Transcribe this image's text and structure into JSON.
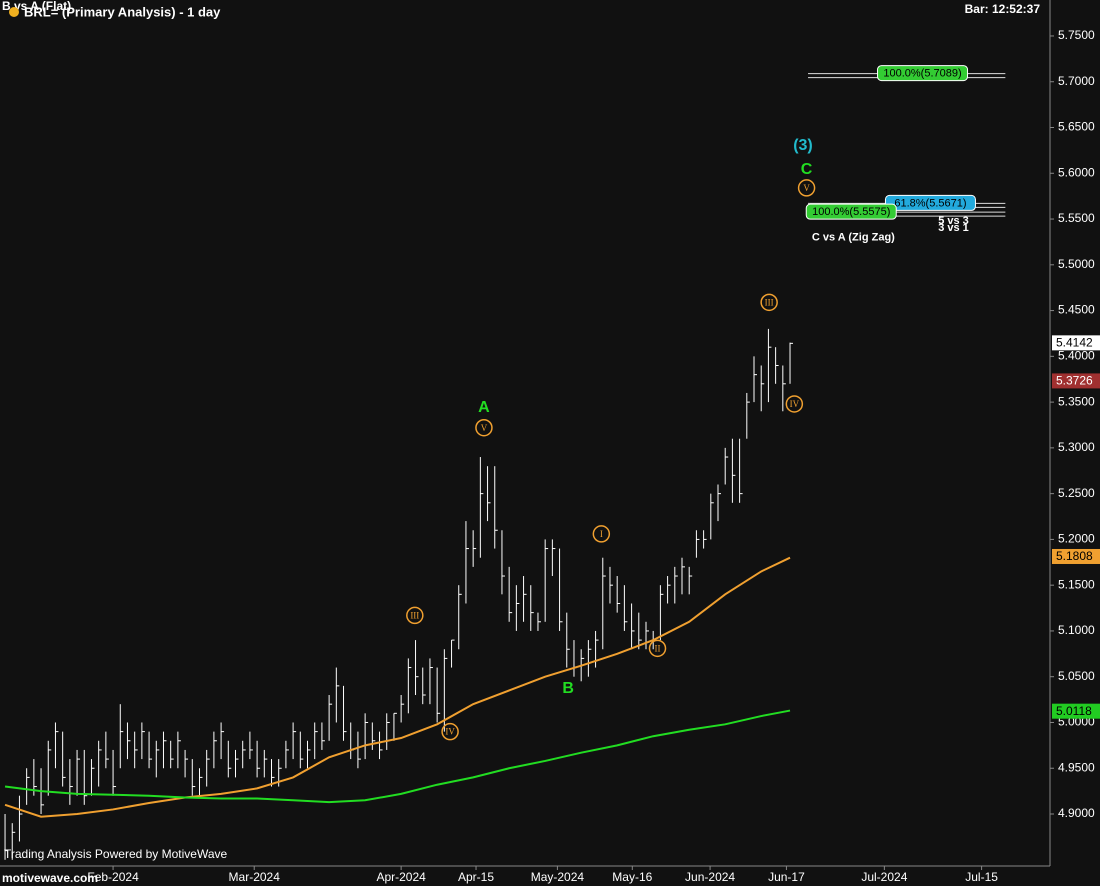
{
  "chart_data": {
    "type": "ohlc",
    "title": "BRL= (Primary Analysis) - 1 day",
    "subtitle": "B vs A (Flat)",
    "bar_time": "Bar: 12:52:37",
    "footer": "Trading Analysis Powered by MotiveWave",
    "watermark": "motivewave.com",
    "bar_color": "#ffffff",
    "xlim": [
      -0.7,
      145.1
    ],
    "ylim": [
      4.8432,
      5.7893
    ],
    "xticks": [
      {
        "value": 15,
        "label": "Feb-2024"
      },
      {
        "value": 34.6,
        "label": "Mar-2024"
      },
      {
        "value": 55,
        "label": "Apr-2024"
      },
      {
        "value": 65.4,
        "label": "Apr-15"
      },
      {
        "value": 76.7,
        "label": "May-2024"
      },
      {
        "value": 87.1,
        "label": "May-16"
      },
      {
        "value": 97.9,
        "label": "Jun-2024"
      },
      {
        "value": 108.5,
        "label": "Jun-17"
      },
      {
        "value": 122.1,
        "label": "Jul-2024"
      },
      {
        "value": 135.6,
        "label": "Jul-15"
      }
    ],
    "yticks": [
      {
        "value": 4.9,
        "label": "4.9000"
      },
      {
        "value": 4.95,
        "label": "4.9500"
      },
      {
        "value": 5,
        "label": "5.0000"
      },
      {
        "value": 5.05,
        "label": "5.0500"
      },
      {
        "value": 5.1,
        "label": "5.1000"
      },
      {
        "value": 5.15,
        "label": "5.1500"
      },
      {
        "value": 5.2,
        "label": "5.2000"
      },
      {
        "value": 5.25,
        "label": "5.2500"
      },
      {
        "value": 5.3,
        "label": "5.3000"
      },
      {
        "value": 5.35,
        "label": "5.3500"
      },
      {
        "value": 5.4,
        "label": "5.4000"
      },
      {
        "value": 5.45,
        "label": "5.4500"
      },
      {
        "value": 5.5,
        "label": "5.5000"
      },
      {
        "value": 5.55,
        "label": "5.5500"
      },
      {
        "value": 5.6,
        "label": "5.6000"
      },
      {
        "value": 5.65,
        "label": "5.6500"
      },
      {
        "value": 5.7,
        "label": "5.7000"
      },
      {
        "value": 5.75,
        "label": "5.7500"
      }
    ],
    "high": [
      4.9,
      4.89,
      4.92,
      4.95,
      4.96,
      4.95,
      4.98,
      5.0,
      4.99,
      4.96,
      4.97,
      4.97,
      4.96,
      4.98,
      4.99,
      4.97,
      5.02,
      5.0,
      4.99,
      5.0,
      4.99,
      4.98,
      4.99,
      4.98,
      4.99,
      4.97,
      4.96,
      4.95,
      4.97,
      4.99,
      5.0,
      4.98,
      4.97,
      4.98,
      4.99,
      4.98,
      4.97,
      4.96,
      4.96,
      4.98,
      5.0,
      4.99,
      4.98,
      5.0,
      5.0,
      5.03,
      5.06,
      5.04,
      5.0,
      4.99,
      5.01,
      5.0,
      4.99,
      5.01,
      5.01,
      5.03,
      5.07,
      5.09,
      5.06,
      5.07,
      5.06,
      5.08,
      5.09,
      5.15,
      5.22,
      5.21,
      5.29,
      5.28,
      5.28,
      5.21,
      5.17,
      5.15,
      5.16,
      5.15,
      5.12,
      5.2,
      5.2,
      5.19,
      5.12,
      5.09,
      5.08,
      5.09,
      5.1,
      5.18,
      5.17,
      5.16,
      5.15,
      5.13,
      5.12,
      5.11,
      5.1,
      5.15,
      5.16,
      5.17,
      5.18,
      5.17,
      5.21,
      5.21,
      5.25,
      5.26,
      5.3,
      5.31,
      5.31,
      5.36,
      5.4,
      5.39,
      5.43,
      5.41,
      5.39,
      5.415
    ],
    "low": [
      4.85,
      4.85,
      4.87,
      4.91,
      4.92,
      4.9,
      4.92,
      4.95,
      4.93,
      4.91,
      4.92,
      4.91,
      4.92,
      4.93,
      4.95,
      4.92,
      4.95,
      4.96,
      4.95,
      4.96,
      4.95,
      4.94,
      4.95,
      4.95,
      4.95,
      4.94,
      4.92,
      4.92,
      4.93,
      4.95,
      4.96,
      4.94,
      4.94,
      4.95,
      4.96,
      4.94,
      4.94,
      4.93,
      4.93,
      4.95,
      4.96,
      4.95,
      4.95,
      4.96,
      4.97,
      4.98,
      5.0,
      4.98,
      4.96,
      4.95,
      4.96,
      4.97,
      4.96,
      4.97,
      4.98,
      5.0,
      5.01,
      5.03,
      5.02,
      5.02,
      5.0,
      4.99,
      5.06,
      5.08,
      5.13,
      5.17,
      5.18,
      5.22,
      5.19,
      5.14,
      5.11,
      5.1,
      5.11,
      5.1,
      5.1,
      5.11,
      5.16,
      5.1,
      5.06,
      5.05,
      5.045,
      5.05,
      5.06,
      5.08,
      5.13,
      5.12,
      5.1,
      5.08,
      5.08,
      5.08,
      5.08,
      5.09,
      5.13,
      5.13,
      5.14,
      5.14,
      5.18,
      5.19,
      5.2,
      5.22,
      5.26,
      5.24,
      5.24,
      5.31,
      5.35,
      5.34,
      5.35,
      5.37,
      5.34,
      5.37
    ],
    "close": [
      4.86,
      4.88,
      4.9,
      4.94,
      4.93,
      4.91,
      4.97,
      4.99,
      4.94,
      4.93,
      4.96,
      4.92,
      4.95,
      4.97,
      4.96,
      4.93,
      4.99,
      4.98,
      4.97,
      4.99,
      4.96,
      4.97,
      4.98,
      4.96,
      4.98,
      4.96,
      4.93,
      4.94,
      4.96,
      4.98,
      4.99,
      4.95,
      4.96,
      4.97,
      4.97,
      4.95,
      4.96,
      4.94,
      4.95,
      4.97,
      4.99,
      4.96,
      4.97,
      4.99,
      4.98,
      5.02,
      5.04,
      4.99,
      4.97,
      4.96,
      5.0,
      4.98,
      4.97,
      5.0,
      5.01,
      5.02,
      5.06,
      5.05,
      5.03,
      5.06,
      5.01,
      5.07,
      5.09,
      5.14,
      5.19,
      5.19,
      5.25,
      5.24,
      5.21,
      5.16,
      5.12,
      5.13,
      5.14,
      5.12,
      5.11,
      5.19,
      5.19,
      5.11,
      5.08,
      5.06,
      5.07,
      5.08,
      5.09,
      5.16,
      5.15,
      5.13,
      5.11,
      5.1,
      5.09,
      5.1,
      5.09,
      5.14,
      5.15,
      5.16,
      5.17,
      5.16,
      5.2,
      5.2,
      5.24,
      5.25,
      5.29,
      5.27,
      5.25,
      5.35,
      5.38,
      5.37,
      5.41,
      5.39,
      5.37,
      5.4142
    ],
    "series": [
      {
        "color": "#f0a030",
        "x": [
          0,
          5,
          10,
          15,
          20,
          25,
          30,
          35,
          40,
          45,
          50,
          55,
          60,
          65,
          70,
          75,
          80,
          85,
          90,
          95,
          100,
          105,
          109
        ],
        "values": [
          4.91,
          4.897,
          4.9,
          4.905,
          4.912,
          4.918,
          4.922,
          4.928,
          4.94,
          4.962,
          4.975,
          4.983,
          4.998,
          5.02,
          5.035,
          5.05,
          5.062,
          5.075,
          5.09,
          5.11,
          5.14,
          5.165,
          5.18
        ]
      },
      {
        "color": "#22dd22",
        "x": [
          0,
          5,
          10,
          15,
          20,
          25,
          30,
          35,
          40,
          45,
          50,
          55,
          60,
          65,
          70,
          75,
          80,
          85,
          90,
          95,
          100,
          105,
          109
        ],
        "values": [
          4.93,
          4.925,
          4.922,
          4.921,
          4.92,
          4.918,
          4.917,
          4.917,
          4.915,
          4.913,
          4.915,
          4.922,
          4.932,
          4.94,
          4.95,
          4.958,
          4.967,
          4.975,
          4.985,
          4.992,
          4.998,
          5.007,
          5.013
        ]
      }
    ],
    "annotations": [
      {
        "text": "A",
        "x": 66.5,
        "y": 5.345,
        "color": "#22dd22",
        "circle": false
      },
      {
        "text": "V",
        "x": 66.5,
        "y": 5.322,
        "color": "#f0a030",
        "circle": true
      },
      {
        "text": "III",
        "x": 56.9,
        "y": 5.117,
        "color": "#f0a030",
        "circle": true
      },
      {
        "text": "IV",
        "x": 61.8,
        "y": 4.99,
        "color": "#f0a030",
        "circle": true
      },
      {
        "text": "B",
        "x": 78.2,
        "y": 5.038,
        "color": "#22dd22",
        "circle": false
      },
      {
        "text": "I",
        "x": 82.8,
        "y": 5.206,
        "color": "#f0a030",
        "circle": true
      },
      {
        "text": "II",
        "x": 90.6,
        "y": 5.081,
        "color": "#f0a030",
        "circle": true
      },
      {
        "text": "III",
        "x": 106.1,
        "y": 5.459,
        "color": "#f0a030",
        "circle": true
      },
      {
        "text": "IV",
        "x": 109.6,
        "y": 5.348,
        "color": "#f0a030",
        "circle": true
      },
      {
        "text": "(3)",
        "x": 110.8,
        "y": 5.631,
        "color": "#22bbcc",
        "circle": false
      },
      {
        "text": "C",
        "x": 111.3,
        "y": 5.605,
        "color": "#22dd22",
        "circle": false
      },
      {
        "text": "V",
        "x": 111.3,
        "y": 5.584,
        "color": "#f0a030",
        "circle": true
      }
    ],
    "fib_levels": [
      {
        "label": "100.0%(5.7089)",
        "value": 5.7089,
        "color": "#33cc33",
        "x": 127.4
      },
      {
        "label": "61.8%(5.5671)",
        "value": 5.5671,
        "color": "#22aadd",
        "x": 128.5
      },
      {
        "label": "100.0%(5.5575)",
        "value": 5.5575,
        "color": "#33cc33",
        "x": 117.5
      }
    ],
    "fib_notes": [
      {
        "text": "C vs A (Zig Zag)",
        "x": 117.8,
        "y": 5.53
      },
      {
        "text": "5 vs 3",
        "x": 131.7,
        "y": 5.548
      },
      {
        "text": "3 vs 1",
        "x": 131.7,
        "y": 5.54
      }
    ],
    "price_tags": [
      {
        "value": 5.4142,
        "color": "#ffffff",
        "text_color": "#000000"
      },
      {
        "value": 5.3726,
        "color": "#a03030",
        "text_color": "#ffffff"
      },
      {
        "value": 5.1808,
        "color": "#f0a030",
        "text_color": "#000000"
      },
      {
        "value": 5.0118,
        "color": "#22cc22",
        "text_color": "#000000"
      }
    ]
  }
}
